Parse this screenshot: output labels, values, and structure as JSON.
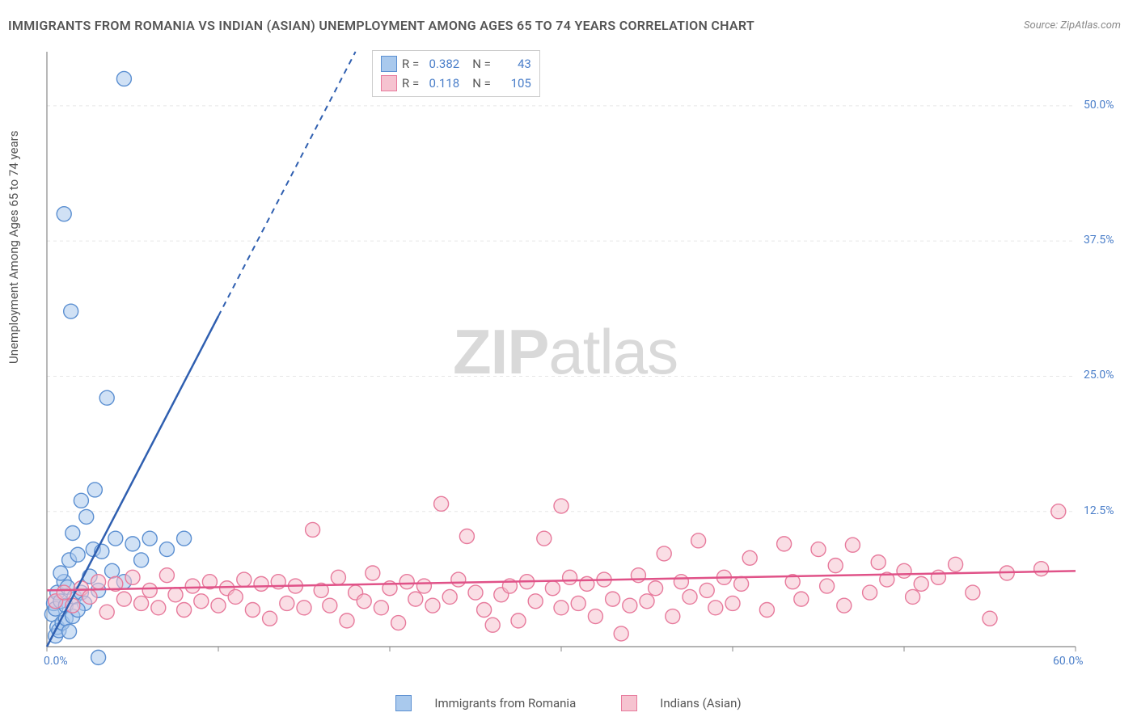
{
  "title": "IMMIGRANTS FROM ROMANIA VS INDIAN (ASIAN) UNEMPLOYMENT AMONG AGES 65 TO 74 YEARS CORRELATION CHART",
  "source": "Source: ZipAtlas.com",
  "y_axis_label": "Unemployment Among Ages 65 to 74 years",
  "watermark_bold": "ZIP",
  "watermark_light": "atlas",
  "chart": {
    "type": "scatter",
    "background_color": "#ffffff",
    "grid_color": "#e6e6e6",
    "axis_color": "#888888",
    "xlim": [
      0,
      60
    ],
    "ylim": [
      0,
      55
    ],
    "x_ticks": [
      0,
      10,
      20,
      30,
      40,
      50,
      60
    ],
    "x_tick_labels": [
      "0.0%",
      "",
      "",
      "",
      "",
      "",
      "60.0%"
    ],
    "y_ticks": [
      0,
      12.5,
      25,
      37.5,
      50
    ],
    "y_tick_labels": [
      "",
      "12.5%",
      "25.0%",
      "37.5%",
      "50.0%"
    ],
    "marker_radius": 9,
    "marker_opacity": 0.55,
    "series": [
      {
        "name": "Immigrants from Romania",
        "color_fill": "#a9c9ed",
        "color_stroke": "#5b8fd1",
        "line_color": "#2f5fb0",
        "r_value": "0.382",
        "n_value": "43",
        "trend": {
          "x1": 0,
          "y1": 0,
          "x2": 18,
          "y2": 55,
          "dashed_from_x": 10
        },
        "points": [
          [
            0.3,
            3.0
          ],
          [
            0.4,
            4.0
          ],
          [
            0.5,
            3.5
          ],
          [
            0.6,
            5.0
          ],
          [
            0.8,
            4.2
          ],
          [
            1.0,
            6.0
          ],
          [
            1.1,
            3.8
          ],
          [
            1.2,
            5.5
          ],
          [
            1.3,
            8.0
          ],
          [
            1.5,
            10.5
          ],
          [
            1.6,
            4.6
          ],
          [
            1.8,
            8.5
          ],
          [
            2.0,
            5.0
          ],
          [
            2.0,
            13.5
          ],
          [
            2.2,
            4.0
          ],
          [
            2.3,
            12.0
          ],
          [
            2.5,
            6.5
          ],
          [
            2.7,
            9.0
          ],
          [
            2.8,
            14.5
          ],
          [
            3.0,
            5.2
          ],
          [
            3.0,
            -1.0
          ],
          [
            3.2,
            8.8
          ],
          [
            3.5,
            23.0
          ],
          [
            3.8,
            7.0
          ],
          [
            4.0,
            10.0
          ],
          [
            4.5,
            6.0
          ],
          [
            5.0,
            9.5
          ],
          [
            5.5,
            8.0
          ],
          [
            6.0,
            10.0
          ],
          [
            7.0,
            9.0
          ],
          [
            8.0,
            10.0
          ],
          [
            0.5,
            1.0
          ],
          [
            0.6,
            1.8
          ],
          [
            0.7,
            1.5
          ],
          [
            0.9,
            2.2
          ],
          [
            1.1,
            2.6
          ],
          [
            1.3,
            1.4
          ],
          [
            1.5,
            2.8
          ],
          [
            1.4,
            31.0
          ],
          [
            1.0,
            40.0
          ],
          [
            4.5,
            52.5
          ],
          [
            0.8,
            6.8
          ],
          [
            1.8,
            3.4
          ]
        ]
      },
      {
        "name": "Indians (Asian)",
        "color_fill": "#f6c3d0",
        "color_stroke": "#e77a9c",
        "line_color": "#e05288",
        "r_value": "0.118",
        "n_value": "105",
        "trend": {
          "x1": 0,
          "y1": 5.2,
          "x2": 60,
          "y2": 7.0,
          "dashed_from_x": 60
        },
        "points": [
          [
            0.5,
            4.2
          ],
          [
            1.0,
            5.0
          ],
          [
            1.5,
            3.8
          ],
          [
            2.0,
            5.4
          ],
          [
            2.5,
            4.6
          ],
          [
            3.0,
            6.0
          ],
          [
            3.5,
            3.2
          ],
          [
            4.0,
            5.8
          ],
          [
            4.5,
            4.4
          ],
          [
            5.0,
            6.4
          ],
          [
            5.5,
            4.0
          ],
          [
            6.0,
            5.2
          ],
          [
            6.5,
            3.6
          ],
          [
            7.0,
            6.6
          ],
          [
            7.5,
            4.8
          ],
          [
            8.0,
            3.4
          ],
          [
            8.5,
            5.6
          ],
          [
            9.0,
            4.2
          ],
          [
            9.5,
            6.0
          ],
          [
            10.0,
            3.8
          ],
          [
            10.5,
            5.4
          ],
          [
            11.0,
            4.6
          ],
          [
            11.5,
            6.2
          ],
          [
            12.0,
            3.4
          ],
          [
            12.5,
            5.8
          ],
          [
            13.0,
            2.6
          ],
          [
            13.5,
            6.0
          ],
          [
            14.0,
            4.0
          ],
          [
            14.5,
            5.6
          ],
          [
            15.0,
            3.6
          ],
          [
            15.5,
            10.8
          ],
          [
            16.0,
            5.2
          ],
          [
            16.5,
            3.8
          ],
          [
            17.0,
            6.4
          ],
          [
            17.5,
            2.4
          ],
          [
            18.0,
            5.0
          ],
          [
            18.5,
            4.2
          ],
          [
            19.0,
            6.8
          ],
          [
            19.5,
            3.6
          ],
          [
            20.0,
            5.4
          ],
          [
            20.5,
            2.2
          ],
          [
            21.0,
            6.0
          ],
          [
            21.5,
            4.4
          ],
          [
            22.0,
            5.6
          ],
          [
            22.5,
            3.8
          ],
          [
            23.0,
            13.2
          ],
          [
            23.5,
            4.6
          ],
          [
            24.0,
            6.2
          ],
          [
            24.5,
            10.2
          ],
          [
            25.0,
            5.0
          ],
          [
            25.5,
            3.4
          ],
          [
            26.0,
            2.0
          ],
          [
            26.5,
            4.8
          ],
          [
            27.0,
            5.6
          ],
          [
            27.5,
            2.4
          ],
          [
            28.0,
            6.0
          ],
          [
            28.5,
            4.2
          ],
          [
            29.0,
            10.0
          ],
          [
            29.5,
            5.4
          ],
          [
            30.0,
            3.6
          ],
          [
            30.0,
            13.0
          ],
          [
            30.5,
            6.4
          ],
          [
            31.0,
            4.0
          ],
          [
            31.5,
            5.8
          ],
          [
            32.0,
            2.8
          ],
          [
            32.5,
            6.2
          ],
          [
            33.0,
            4.4
          ],
          [
            33.5,
            1.2
          ],
          [
            34.0,
            3.8
          ],
          [
            34.5,
            6.6
          ],
          [
            35.0,
            4.2
          ],
          [
            35.5,
            5.4
          ],
          [
            36.0,
            8.6
          ],
          [
            36.5,
            2.8
          ],
          [
            37.0,
            6.0
          ],
          [
            37.5,
            4.6
          ],
          [
            38.0,
            9.8
          ],
          [
            38.5,
            5.2
          ],
          [
            39.0,
            3.6
          ],
          [
            39.5,
            6.4
          ],
          [
            40.0,
            4.0
          ],
          [
            40.5,
            5.8
          ],
          [
            41.0,
            8.2
          ],
          [
            42.0,
            3.4
          ],
          [
            43.0,
            9.5
          ],
          [
            43.5,
            6.0
          ],
          [
            44.0,
            4.4
          ],
          [
            45.0,
            9.0
          ],
          [
            45.5,
            5.6
          ],
          [
            46.0,
            7.5
          ],
          [
            46.5,
            3.8
          ],
          [
            47.0,
            9.4
          ],
          [
            48.0,
            5.0
          ],
          [
            48.5,
            7.8
          ],
          [
            49.0,
            6.2
          ],
          [
            50.0,
            7.0
          ],
          [
            50.5,
            4.6
          ],
          [
            51.0,
            5.8
          ],
          [
            52.0,
            6.4
          ],
          [
            53.0,
            7.6
          ],
          [
            54.0,
            5.0
          ],
          [
            55.0,
            2.6
          ],
          [
            56.0,
            6.8
          ],
          [
            58.0,
            7.2
          ],
          [
            59.0,
            12.5
          ]
        ]
      }
    ]
  },
  "stats_legend": {
    "rows": [
      {
        "swatch_fill": "#a9c9ed",
        "swatch_stroke": "#5b8fd1",
        "r_label": "R =",
        "r_val": "0.382",
        "n_label": "N =",
        "n_val": "43"
      },
      {
        "swatch_fill": "#f6c3d0",
        "swatch_stroke": "#e77a9c",
        "r_label": "R =",
        "r_val": "0.118",
        "n_label": "N =",
        "n_val": "105"
      }
    ]
  },
  "bottom_legend": {
    "items": [
      {
        "swatch_fill": "#a9c9ed",
        "swatch_stroke": "#5b8fd1",
        "label": "Immigrants from Romania"
      },
      {
        "swatch_fill": "#f6c3d0",
        "swatch_stroke": "#e77a9c",
        "label": "Indians (Asian)"
      }
    ]
  }
}
